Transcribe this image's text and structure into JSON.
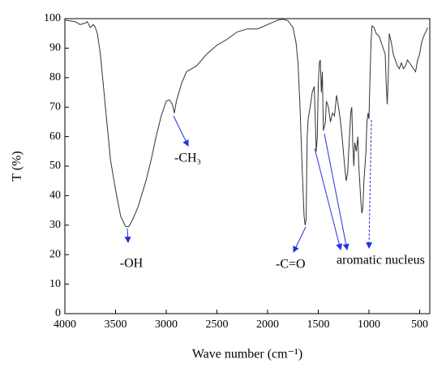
{
  "chart_data": {
    "type": "line",
    "xlabel": "Wave number (cm⁻¹)",
    "ylabel": "T (%)",
    "xlim": [
      4000,
      400
    ],
    "ylim": [
      0,
      100
    ],
    "xticks": [
      4000,
      3500,
      3000,
      2500,
      2000,
      1500,
      1000,
      500
    ],
    "yticks": [
      0,
      10,
      20,
      30,
      40,
      50,
      60,
      70,
      80,
      90,
      100
    ],
    "annotations": [
      "-OH",
      "-CH₃",
      "-C=O",
      "aromatic nucleus"
    ],
    "series": [
      {
        "color": "#333333",
        "x": [
          4000,
          3900,
          3850,
          3800,
          3780,
          3750,
          3720,
          3700,
          3680,
          3650,
          3600,
          3550,
          3500,
          3450,
          3400,
          3370,
          3330,
          3280,
          3200,
          3150,
          3100,
          3050,
          3000,
          2970,
          2940,
          2920,
          2900,
          2850,
          2800,
          2700,
          2600,
          2500,
          2400,
          2300,
          2200,
          2100,
          2000,
          1900,
          1850,
          1800,
          1750,
          1720,
          1700,
          1680,
          1660,
          1640,
          1630,
          1620,
          1610,
          1600,
          1580,
          1560,
          1540,
          1520,
          1510,
          1500,
          1490,
          1480,
          1470,
          1460,
          1450,
          1430,
          1420,
          1400,
          1380,
          1360,
          1340,
          1320,
          1300,
          1280,
          1260,
          1240,
          1225,
          1210,
          1200,
          1180,
          1170,
          1160,
          1150,
          1140,
          1125,
          1110,
          1100,
          1080,
          1070,
          1060,
          1050,
          1030,
          1020,
          1010,
          1000,
          990,
          980,
          970,
          950,
          930,
          900,
          880,
          860,
          840,
          830,
          820,
          810,
          800,
          780,
          760,
          740,
          720,
          700,
          680,
          660,
          640,
          620,
          600,
          580,
          560,
          540,
          520,
          500,
          480,
          460,
          440,
          420
        ],
        "y": [
          99.5,
          99,
          98,
          98.5,
          99,
          97,
          98,
          97,
          95,
          88,
          70,
          52,
          42,
          33,
          29.5,
          29.5,
          32,
          36,
          45,
          52,
          60,
          67,
          72,
          72.5,
          71,
          68,
          72,
          78,
          82,
          84,
          88,
          91,
          93,
          95.5,
          96.5,
          96.5,
          98,
          99.5,
          99.8,
          99.3,
          97,
          92,
          85,
          70,
          50,
          33,
          30,
          32,
          60,
          66,
          70,
          75,
          77,
          55,
          60,
          78,
          85,
          86,
          75,
          82,
          62,
          65,
          72,
          70,
          65,
          68,
          67,
          74,
          70,
          65,
          58,
          50,
          45,
          48,
          55,
          68,
          70,
          58,
          50,
          58,
          55,
          60,
          50,
          38,
          34,
          36,
          45,
          55,
          65,
          68,
          66,
          80,
          92,
          97.5,
          97,
          95,
          94,
          92,
          90,
          88,
          78,
          71,
          80,
          95,
          92,
          88,
          86,
          84,
          83,
          85,
          83,
          84,
          86,
          85,
          84,
          83,
          82,
          86,
          88,
          92,
          94,
          95.5,
          97
        ]
      }
    ]
  }
}
